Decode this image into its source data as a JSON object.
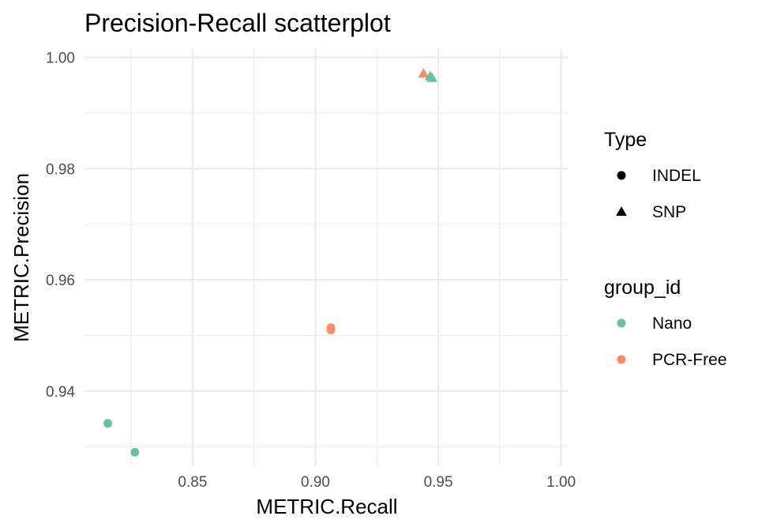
{
  "chart_data": {
    "type": "scatter",
    "title": "Precision-Recall scatterplot",
    "xlabel": "METRIC.Recall",
    "ylabel": "METRIC.Precision",
    "xlim": [
      0.806,
      1.003
    ],
    "ylim": [
      0.9265,
      1.0015
    ],
    "x_ticks": [
      0.85,
      0.9,
      0.95,
      1.0
    ],
    "x_tick_labels": [
      "0.85",
      "0.90",
      "0.95",
      "1.00"
    ],
    "y_ticks": [
      0.94,
      0.96,
      0.98,
      1.0
    ],
    "y_tick_labels": [
      "0.94",
      "0.96",
      "0.98",
      "1.00"
    ],
    "grid": true,
    "legend_position": "right",
    "legends": [
      {
        "title": "Type",
        "entries": [
          {
            "label": "INDEL",
            "shape": "circle"
          },
          {
            "label": "SNP",
            "shape": "triangle"
          }
        ]
      },
      {
        "title": "group_id",
        "entries": [
          {
            "label": "Nano",
            "color": "#66c2a5"
          },
          {
            "label": "PCR-Free",
            "color": "#fc8d62"
          }
        ]
      }
    ],
    "points": [
      {
        "x": 0.8155,
        "y": 0.9342,
        "type": "INDEL",
        "group": "Nano"
      },
      {
        "x": 0.8265,
        "y": 0.929,
        "type": "INDEL",
        "group": "Nano"
      },
      {
        "x": 0.9063,
        "y": 0.9514,
        "type": "INDEL",
        "group": "PCR-Free"
      },
      {
        "x": 0.9063,
        "y": 0.951,
        "type": "INDEL",
        "group": "PCR-Free"
      },
      {
        "x": 0.944,
        "y": 0.9971,
        "type": "SNP",
        "group": "PCR-Free"
      },
      {
        "x": 0.9467,
        "y": 0.9966,
        "type": "SNP",
        "group": "Nano"
      },
      {
        "x": 0.9475,
        "y": 0.9963,
        "type": "SNP",
        "group": "Nano"
      }
    ]
  }
}
